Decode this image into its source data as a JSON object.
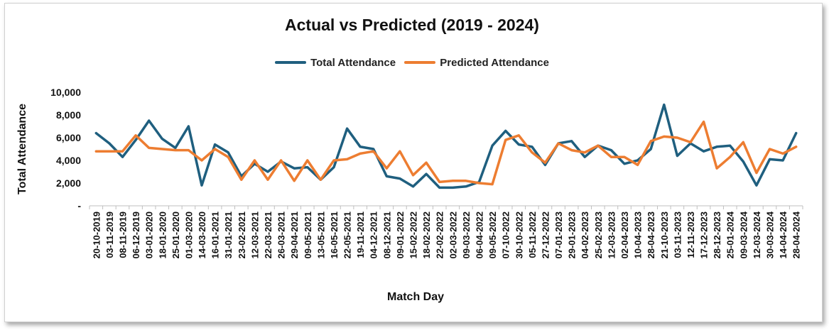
{
  "chart_data": {
    "type": "line",
    "title": "Actual vs Predicted (2019 - 2024)",
    "xlabel": "Match Day",
    "ylabel": "Total Attendance",
    "ylim": [
      0,
      10000
    ],
    "yticks": [
      0,
      2000,
      4000,
      6000,
      8000,
      10000
    ],
    "ytick_labels": [
      "-",
      "2,000",
      "4,000",
      "6,000",
      "8,000",
      "10,000"
    ],
    "grid": false,
    "legend_position": "top",
    "categories": [
      "20-10-2019",
      "03-11-2019",
      "08-11-2019",
      "06-12-2019",
      "03-01-2020",
      "18-01-2020",
      "25-01-2020",
      "01-03-2020",
      "14-03-2020",
      "16-01-2021",
      "31-01-2021",
      "23-02-2021",
      "12-03-2021",
      "22-03-2021",
      "26-03-2021",
      "29-04-2021",
      "09-05-2021",
      "13-05-2021",
      "16-05-2021",
      "22-05-2021",
      "19-11-2021",
      "04-12-2021",
      "08-12-2021",
      "09-01-2022",
      "15-02-2022",
      "18-02-2022",
      "22-02-2022",
      "02-03-2022",
      "09-03-2022",
      "06-04-2022",
      "09-05-2022",
      "07-10-2022",
      "30-10-2022",
      "05-11-2022",
      "27-12-2022",
      "07-01-2023",
      "29-01-2023",
      "04-02-2023",
      "25-02-2023",
      "12-03-2023",
      "02-04-2023",
      "10-04-2023",
      "28-04-2023",
      "21-10-2023",
      "03-11-2023",
      "12-11-2023",
      "17-12-2023",
      "28-12-2023",
      "25-01-2024",
      "09-03-2024",
      "12-03-2024",
      "30-03-2024",
      "14-04-2024",
      "28-04-2024"
    ],
    "series": [
      {
        "name": "Total Attendance",
        "color": "#1f5f7f",
        "values": [
          6400,
          5500,
          4300,
          5800,
          7500,
          5900,
          5100,
          7000,
          1800,
          5400,
          4700,
          2600,
          3700,
          3000,
          3900,
          3300,
          3400,
          2300,
          3400,
          6800,
          5200,
          5000,
          2600,
          2400,
          1700,
          2800,
          1600,
          1600,
          1700,
          2100,
          5300,
          6600,
          5400,
          5200,
          3600,
          5500,
          5700,
          4300,
          5300,
          4900,
          3700,
          4000,
          5000,
          8900,
          4400,
          5500,
          4800,
          5200,
          5300,
          3900,
          1800,
          4100,
          4000,
          6400
        ]
      },
      {
        "name": "Predicted Attendance",
        "color": "#ed7d31",
        "values": [
          4800,
          4800,
          4800,
          6200,
          5100,
          5000,
          4900,
          4900,
          4000,
          5000,
          4300,
          2300,
          4000,
          2300,
          4000,
          2200,
          4000,
          2300,
          4000,
          4100,
          4600,
          4800,
          3300,
          4800,
          2700,
          3800,
          2100,
          2200,
          2200,
          2000,
          1900,
          5800,
          6200,
          4700,
          3800,
          5500,
          4900,
          4700,
          5300,
          4300,
          4300,
          3600,
          5700,
          6100,
          6000,
          5600,
          7400,
          3300,
          4300,
          5600,
          2900,
          5000,
          4600,
          5200
        ]
      }
    ]
  }
}
